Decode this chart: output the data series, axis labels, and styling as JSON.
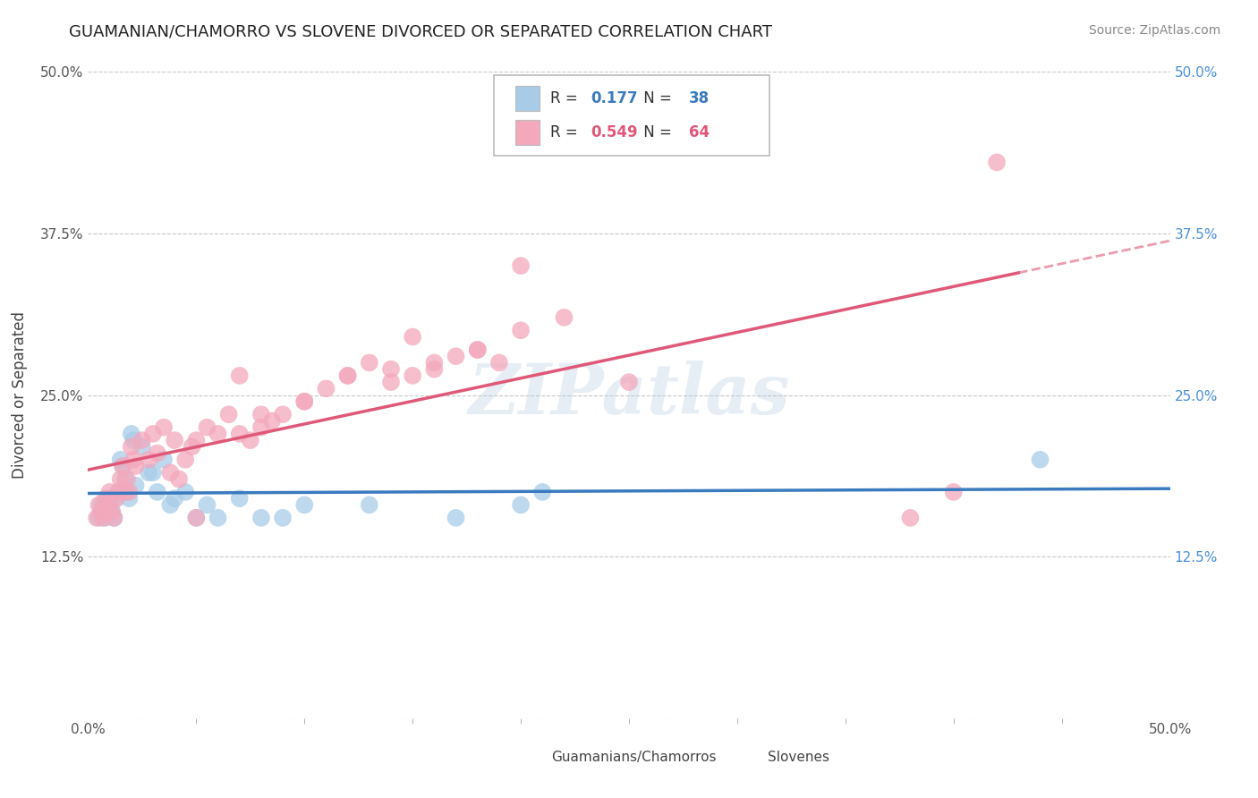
{
  "title": "GUAMANIAN/CHAMORRO VS SLOVENE DIVORCED OR SEPARATED CORRELATION CHART",
  "source": "Source: ZipAtlas.com",
  "ylabel": "Divorced or Separated",
  "legend_label1": "Guamanians/Chamorros",
  "legend_label2": "Slovenes",
  "R1": 0.177,
  "N1": 38,
  "R2": 0.549,
  "N2": 64,
  "xlim": [
    0.0,
    0.5
  ],
  "ylim": [
    0.0,
    0.5
  ],
  "color_blue": "#a8cce8",
  "color_pink": "#f4a8bc",
  "line_blue": "#3a7abf",
  "line_pink": "#e05878",
  "background": "#ffffff",
  "grid_color": "#c8c8c8",
  "watermark": "ZIPatlas",
  "blue_points_x": [
    0.005,
    0.006,
    0.007,
    0.008,
    0.009,
    0.01,
    0.011,
    0.012,
    0.013,
    0.014,
    0.015,
    0.016,
    0.017,
    0.018,
    0.019,
    0.02,
    0.021,
    0.022,
    0.025,
    0.028,
    0.03,
    0.032,
    0.035,
    0.038,
    0.04,
    0.045,
    0.05,
    0.055,
    0.06,
    0.07,
    0.08,
    0.09,
    0.1,
    0.13,
    0.17,
    0.21,
    0.44,
    0.2
  ],
  "blue_points_y": [
    0.155,
    0.165,
    0.16,
    0.155,
    0.17,
    0.165,
    0.16,
    0.155,
    0.17,
    0.175,
    0.2,
    0.195,
    0.185,
    0.175,
    0.17,
    0.22,
    0.215,
    0.18,
    0.21,
    0.19,
    0.19,
    0.175,
    0.2,
    0.165,
    0.17,
    0.175,
    0.155,
    0.165,
    0.155,
    0.17,
    0.155,
    0.155,
    0.165,
    0.165,
    0.155,
    0.175,
    0.2,
    0.165
  ],
  "pink_points_x": [
    0.004,
    0.005,
    0.006,
    0.007,
    0.008,
    0.009,
    0.01,
    0.011,
    0.012,
    0.013,
    0.014,
    0.015,
    0.016,
    0.017,
    0.018,
    0.019,
    0.02,
    0.021,
    0.022,
    0.025,
    0.028,
    0.03,
    0.032,
    0.035,
    0.038,
    0.04,
    0.042,
    0.045,
    0.048,
    0.05,
    0.055,
    0.06,
    0.065,
    0.07,
    0.075,
    0.08,
    0.085,
    0.09,
    0.1,
    0.11,
    0.12,
    0.13,
    0.14,
    0.15,
    0.16,
    0.17,
    0.18,
    0.19,
    0.2,
    0.22,
    0.25,
    0.14,
    0.1,
    0.12,
    0.16,
    0.18,
    0.07,
    0.08,
    0.05,
    0.4,
    0.38,
    0.2,
    0.15,
    0.42
  ],
  "pink_points_y": [
    0.155,
    0.165,
    0.16,
    0.155,
    0.17,
    0.165,
    0.175,
    0.16,
    0.155,
    0.17,
    0.175,
    0.185,
    0.195,
    0.175,
    0.185,
    0.175,
    0.21,
    0.2,
    0.195,
    0.215,
    0.2,
    0.22,
    0.205,
    0.225,
    0.19,
    0.215,
    0.185,
    0.2,
    0.21,
    0.215,
    0.225,
    0.22,
    0.235,
    0.22,
    0.215,
    0.225,
    0.23,
    0.235,
    0.245,
    0.255,
    0.265,
    0.275,
    0.27,
    0.265,
    0.27,
    0.28,
    0.285,
    0.275,
    0.3,
    0.31,
    0.26,
    0.26,
    0.245,
    0.265,
    0.275,
    0.285,
    0.265,
    0.235,
    0.155,
    0.175,
    0.155,
    0.35,
    0.295,
    0.43
  ]
}
